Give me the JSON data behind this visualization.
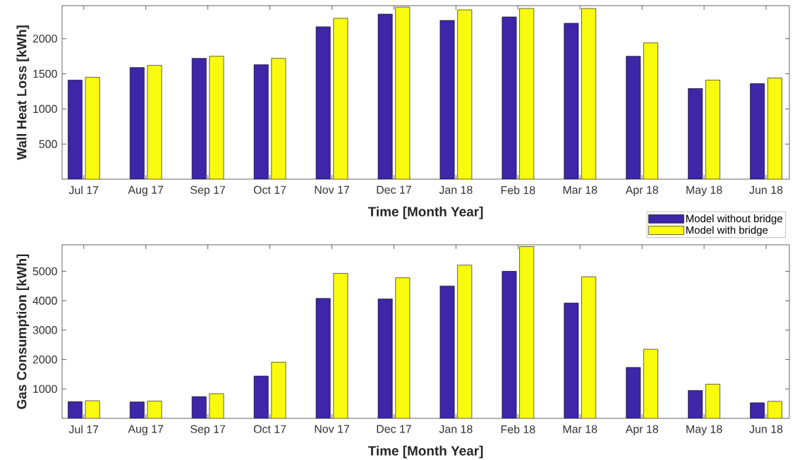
{
  "chart_data": [
    {
      "type": "bar",
      "xlabel": "Time [Month Year]",
      "ylabel": "Wall Heat Loss [kWh]",
      "categories": [
        "Jul 17",
        "Aug 17",
        "Sep 17",
        "Oct 17",
        "Nov 17",
        "Dec 17",
        "Jan 18",
        "Feb 18",
        "Mar 18",
        "Apr 18",
        "May 18",
        "Jun 18"
      ],
      "series": [
        {
          "name": "Model without bridge",
          "color": "#3d26a8",
          "values": [
            1410,
            1590,
            1720,
            1630,
            2170,
            2350,
            2260,
            2310,
            2220,
            1750,
            1290,
            1360
          ]
        },
        {
          "name": "Model with bridge",
          "color": "#f9fb0e",
          "values": [
            1450,
            1620,
            1750,
            1720,
            2290,
            2450,
            2410,
            2430,
            2430,
            1940,
            1410,
            1440
          ]
        }
      ],
      "ylim": [
        0,
        2470
      ],
      "yticks": [
        500,
        1000,
        1500,
        2000
      ],
      "legend": "bottom right"
    },
    {
      "type": "bar",
      "xlabel": "Time [Month Year]",
      "ylabel": "Gas Consumption [kWh]",
      "categories": [
        "Jul 17",
        "Aug 17",
        "Sep 17",
        "Oct 17",
        "Nov 17",
        "Dec 17",
        "Jan 18",
        "Feb 18",
        "Mar 18",
        "Apr 18",
        "May 18",
        "Jun 18"
      ],
      "series": [
        {
          "color": "#3d26a8",
          "values": [
            570,
            560,
            740,
            1440,
            4080,
            4060,
            4500,
            5000,
            3920,
            1730,
            950,
            530
          ]
        },
        {
          "color": "#f9fb0e",
          "values": [
            600,
            590,
            840,
            1910,
            4930,
            4780,
            5210,
            5840,
            4810,
            2350,
            1160,
            580
          ]
        }
      ],
      "ylim": [
        0,
        5900
      ],
      "yticks": [
        1000,
        2000,
        3000,
        4000,
        5000
      ]
    }
  ]
}
